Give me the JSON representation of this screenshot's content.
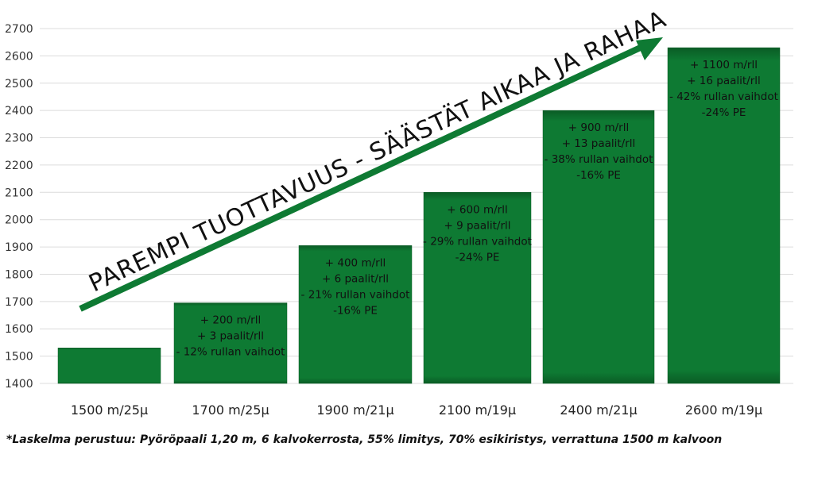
{
  "chart_data": {
    "type": "bar",
    "categories": [
      "1500 m/25µ",
      "1700 m/25µ",
      "1900 m/21µ",
      "2100 m/19µ",
      "2400 m/21µ",
      "2600 m/19µ"
    ],
    "values": [
      1530,
      1695,
      1905,
      2100,
      2400,
      2630
    ],
    "ylim": [
      1400,
      2700
    ],
    "yticks": [
      1400,
      1500,
      1600,
      1700,
      1800,
      1900,
      2000,
      2100,
      2200,
      2300,
      2400,
      2500,
      2600,
      2700
    ],
    "grid": true,
    "bar_color": "#0e7a33",
    "arrow_color": "#0e7a33",
    "annotations": [
      [],
      [
        "+ 200 m/rll",
        "+ 3 paalit/rll",
        "- 12% rullan vaihdot"
      ],
      [
        "+ 400 m/rll",
        "+ 6 paalit/rll",
        "- 21% rullan vaihdot",
        "-16% PE"
      ],
      [
        "+ 600 m/rll",
        "+ 9 paalit/rll",
        "- 29% rullan vaihdot",
        "-24% PE"
      ],
      [
        "+ 900 m/rll",
        "+ 13 paalit/rll",
        "- 38% rullan vaihdot",
        "-16% PE"
      ],
      [
        "+ 1100 m/rll",
        "+ 16 paalit/rll",
        "- 42% rullan vaihdot",
        "-24% PE"
      ]
    ],
    "slogan": "PAREMPI TUOTTAVUUS - SÄÄSTÄT AIKAA JA RAHAA"
  },
  "footnote": "*Laskelma perustuu: Pyöröpaali 1,20 m, 6 kalvokerrosta, 55% limitys, 70% esikiristys, verrattuna 1500 m kalvoon"
}
